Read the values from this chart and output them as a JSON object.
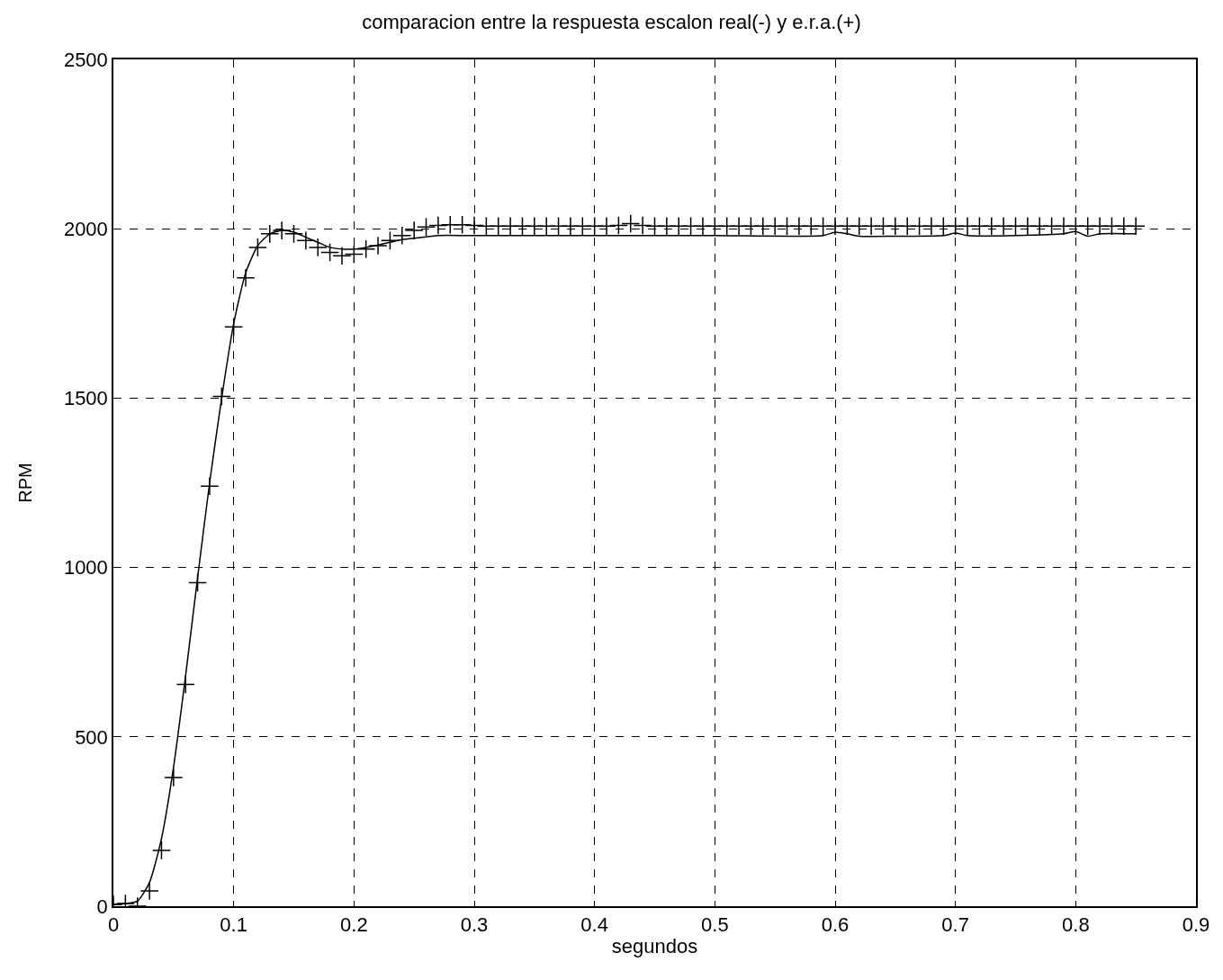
{
  "chart_data": {
    "type": "line",
    "title": "comparacion entre la respuesta escalon real(-) y e.r.a.(+)",
    "xlabel": "segundos",
    "ylabel": "RPM",
    "xlim": [
      0,
      0.9
    ],
    "ylim": [
      0,
      2500
    ],
    "xticks": [
      0,
      0.1,
      0.2,
      0.3,
      0.4,
      0.5,
      0.6,
      0.7,
      0.8,
      0.9
    ],
    "yticks": [
      0,
      500,
      1000,
      1500,
      2000,
      2500
    ],
    "grid": true,
    "series": [
      {
        "color": "#000000",
        "marker": "none",
        "line_style": "solid",
        "x": [
          0,
          0.01,
          0.02,
          0.03,
          0.04,
          0.05,
          0.06,
          0.07,
          0.08,
          0.09,
          0.1,
          0.11,
          0.12,
          0.13,
          0.14,
          0.15,
          0.16,
          0.17,
          0.18,
          0.19,
          0.2,
          0.21,
          0.22,
          0.23,
          0.24,
          0.25,
          0.26,
          0.27,
          0.3,
          0.4,
          0.5,
          0.59,
          0.6,
          0.61,
          0.62,
          0.65,
          0.69,
          0.7,
          0.71,
          0.75,
          0.79,
          0.8,
          0.81,
          0.82,
          0.85
        ],
        "values": [
          5,
          8,
          15,
          70,
          200,
          410,
          680,
          970,
          1250,
          1500,
          1720,
          1870,
          1950,
          1985,
          1995,
          1990,
          1975,
          1960,
          1945,
          1940,
          1940,
          1945,
          1952,
          1960,
          1968,
          1972,
          1976,
          1980,
          1980,
          1980,
          1980,
          1980,
          1990,
          1985,
          1978,
          1978,
          1980,
          1987,
          1980,
          1980,
          1985,
          1992,
          1978,
          1985,
          1985
        ]
      },
      {
        "type": "scatter",
        "color": "#000000",
        "marker": "cross",
        "x": [
          0,
          0.01,
          0.02,
          0.03,
          0.04,
          0.05,
          0.06,
          0.07,
          0.08,
          0.09,
          0.1,
          0.11,
          0.12,
          0.13,
          0.14,
          0.15,
          0.16,
          0.17,
          0.18,
          0.19,
          0.2,
          0.21,
          0.22,
          0.23,
          0.24,
          0.25,
          0.26,
          0.27,
          0.28,
          0.29,
          0.3,
          0.31,
          0.32,
          0.33,
          0.34,
          0.35,
          0.36,
          0.37,
          0.38,
          0.39,
          0.4,
          0.41,
          0.42,
          0.43,
          0.44,
          0.45,
          0.46,
          0.47,
          0.48,
          0.49,
          0.5,
          0.51,
          0.52,
          0.53,
          0.54,
          0.55,
          0.56,
          0.57,
          0.58,
          0.59,
          0.6,
          0.61,
          0.62,
          0.63,
          0.64,
          0.65,
          0.66,
          0.67,
          0.68,
          0.69,
          0.7,
          0.71,
          0.72,
          0.73,
          0.74,
          0.75,
          0.76,
          0.77,
          0.78,
          0.79,
          0.8,
          0.81,
          0.82,
          0.83,
          0.84,
          0.85
        ],
        "values": [
          5,
          8,
          0,
          45,
          165,
          380,
          655,
          955,
          1240,
          1505,
          1710,
          1855,
          1945,
          1985,
          1995,
          1985,
          1965,
          1945,
          1930,
          1920,
          1925,
          1940,
          1950,
          1965,
          1980,
          1995,
          2005,
          2010,
          2012,
          2012,
          2010,
          2008,
          2008,
          2008,
          2008,
          2008,
          2008,
          2008,
          2008,
          2008,
          2008,
          2008,
          2010,
          2015,
          2010,
          2008,
          2008,
          2008,
          2008,
          2008,
          2008,
          2008,
          2008,
          2008,
          2008,
          2008,
          2008,
          2008,
          2008,
          2008,
          2008,
          2008,
          2008,
          2008,
          2008,
          2008,
          2008,
          2008,
          2008,
          2008,
          2008,
          2008,
          2008,
          2008,
          2008,
          2008,
          2008,
          2008,
          2008,
          2008,
          2008,
          2008,
          2008,
          2008,
          2008,
          2008
        ]
      }
    ]
  }
}
